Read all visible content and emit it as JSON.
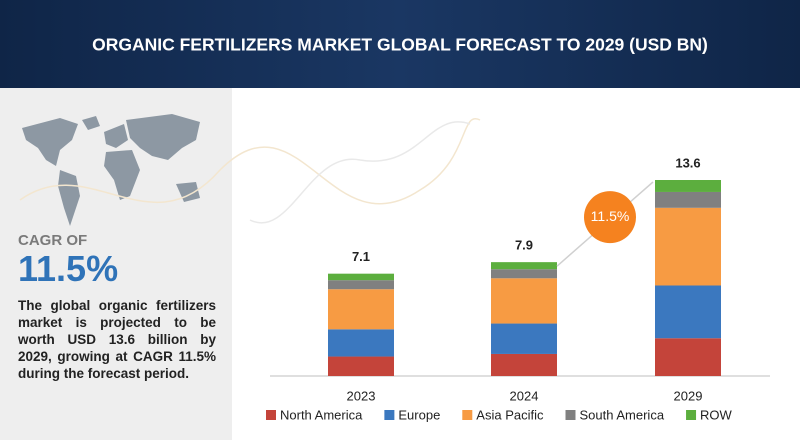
{
  "title": "ORGANIC FERTILIZERS MARKET GLOBAL FORECAST TO 2029 (USD BN)",
  "left_panel": {
    "cagr_label": "CAGR OF",
    "cagr_value": "11.5%",
    "description": "The global organic fertilizers market is projected to be worth USD 13.6 billion by 2029, growing at CAGR 11.5% during the forecast period."
  },
  "chart_data": {
    "type": "bar",
    "stacked": true,
    "categories": [
      "2023",
      "2024",
      "2029"
    ],
    "series": [
      {
        "name": "North America",
        "color": "#c4443a",
        "values": [
          1.35,
          1.53,
          2.62
        ]
      },
      {
        "name": "Europe",
        "color": "#3b78bf",
        "values": [
          1.89,
          2.11,
          3.66
        ]
      },
      {
        "name": "Asia Pacific",
        "color": "#f79b43",
        "values": [
          2.78,
          3.14,
          5.39
        ]
      },
      {
        "name": "South America",
        "color": "#808080",
        "values": [
          0.63,
          0.63,
          1.1
        ]
      },
      {
        "name": "ROW",
        "color": "#5cae3e",
        "values": [
          0.45,
          0.49,
          0.83
        ]
      }
    ],
    "totals": [
      7.1,
      7.9,
      13.6
    ],
    "annotation": "11.5%"
  }
}
